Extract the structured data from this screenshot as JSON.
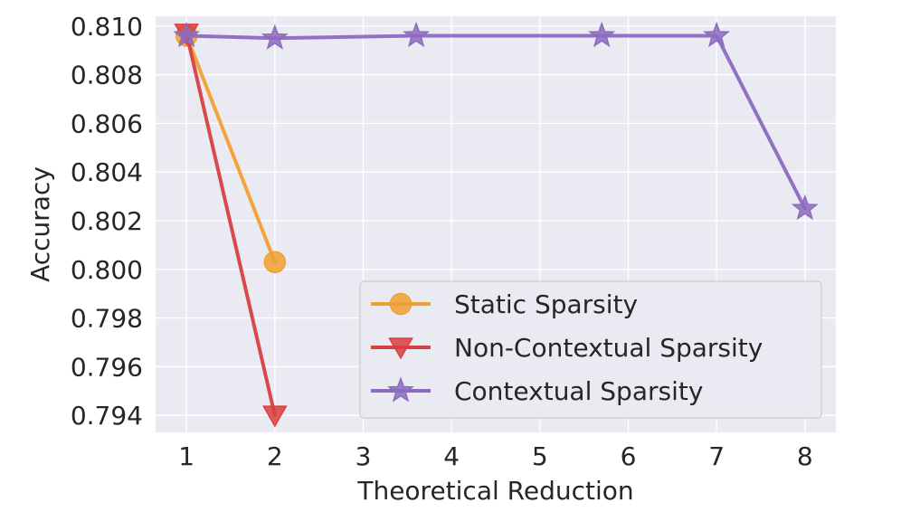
{
  "chart_data": {
    "type": "line",
    "xlabel": "Theoretical Reduction",
    "ylabel": "Accuracy",
    "xlim": [
      0.65,
      8.35
    ],
    "ylim": [
      0.7933,
      0.8104
    ],
    "x_ticks": [
      1,
      2,
      3,
      4,
      5,
      6,
      7,
      8
    ],
    "y_ticks": [
      0.794,
      0.796,
      0.798,
      0.8,
      0.802,
      0.804,
      0.806,
      0.808,
      0.81
    ],
    "x_tick_labels": [
      "1",
      "2",
      "3",
      "4",
      "5",
      "6",
      "7",
      "8"
    ],
    "y_tick_labels": [
      "0.794",
      "0.796",
      "0.798",
      "0.800",
      "0.802",
      "0.804",
      "0.806",
      "0.808",
      "0.810"
    ],
    "grid": true,
    "legend_position": "lower-right",
    "series": [
      {
        "name": "Static Sparsity",
        "color": "#f0a030",
        "marker": "circle",
        "x": [
          1,
          2
        ],
        "y": [
          0.8096,
          0.8003
        ]
      },
      {
        "name": "Non-Contextual Sparsity",
        "color": "#d94040",
        "marker": "triangle-down",
        "x": [
          1,
          2
        ],
        "y": [
          0.8097,
          0.794
        ]
      },
      {
        "name": "Contextual Sparsity",
        "color": "#8c6bbf",
        "marker": "star",
        "x": [
          1,
          2,
          3.6,
          5.7,
          7,
          8
        ],
        "y": [
          0.8096,
          0.8095,
          0.8096,
          0.8096,
          0.8096,
          0.8025
        ]
      }
    ]
  }
}
